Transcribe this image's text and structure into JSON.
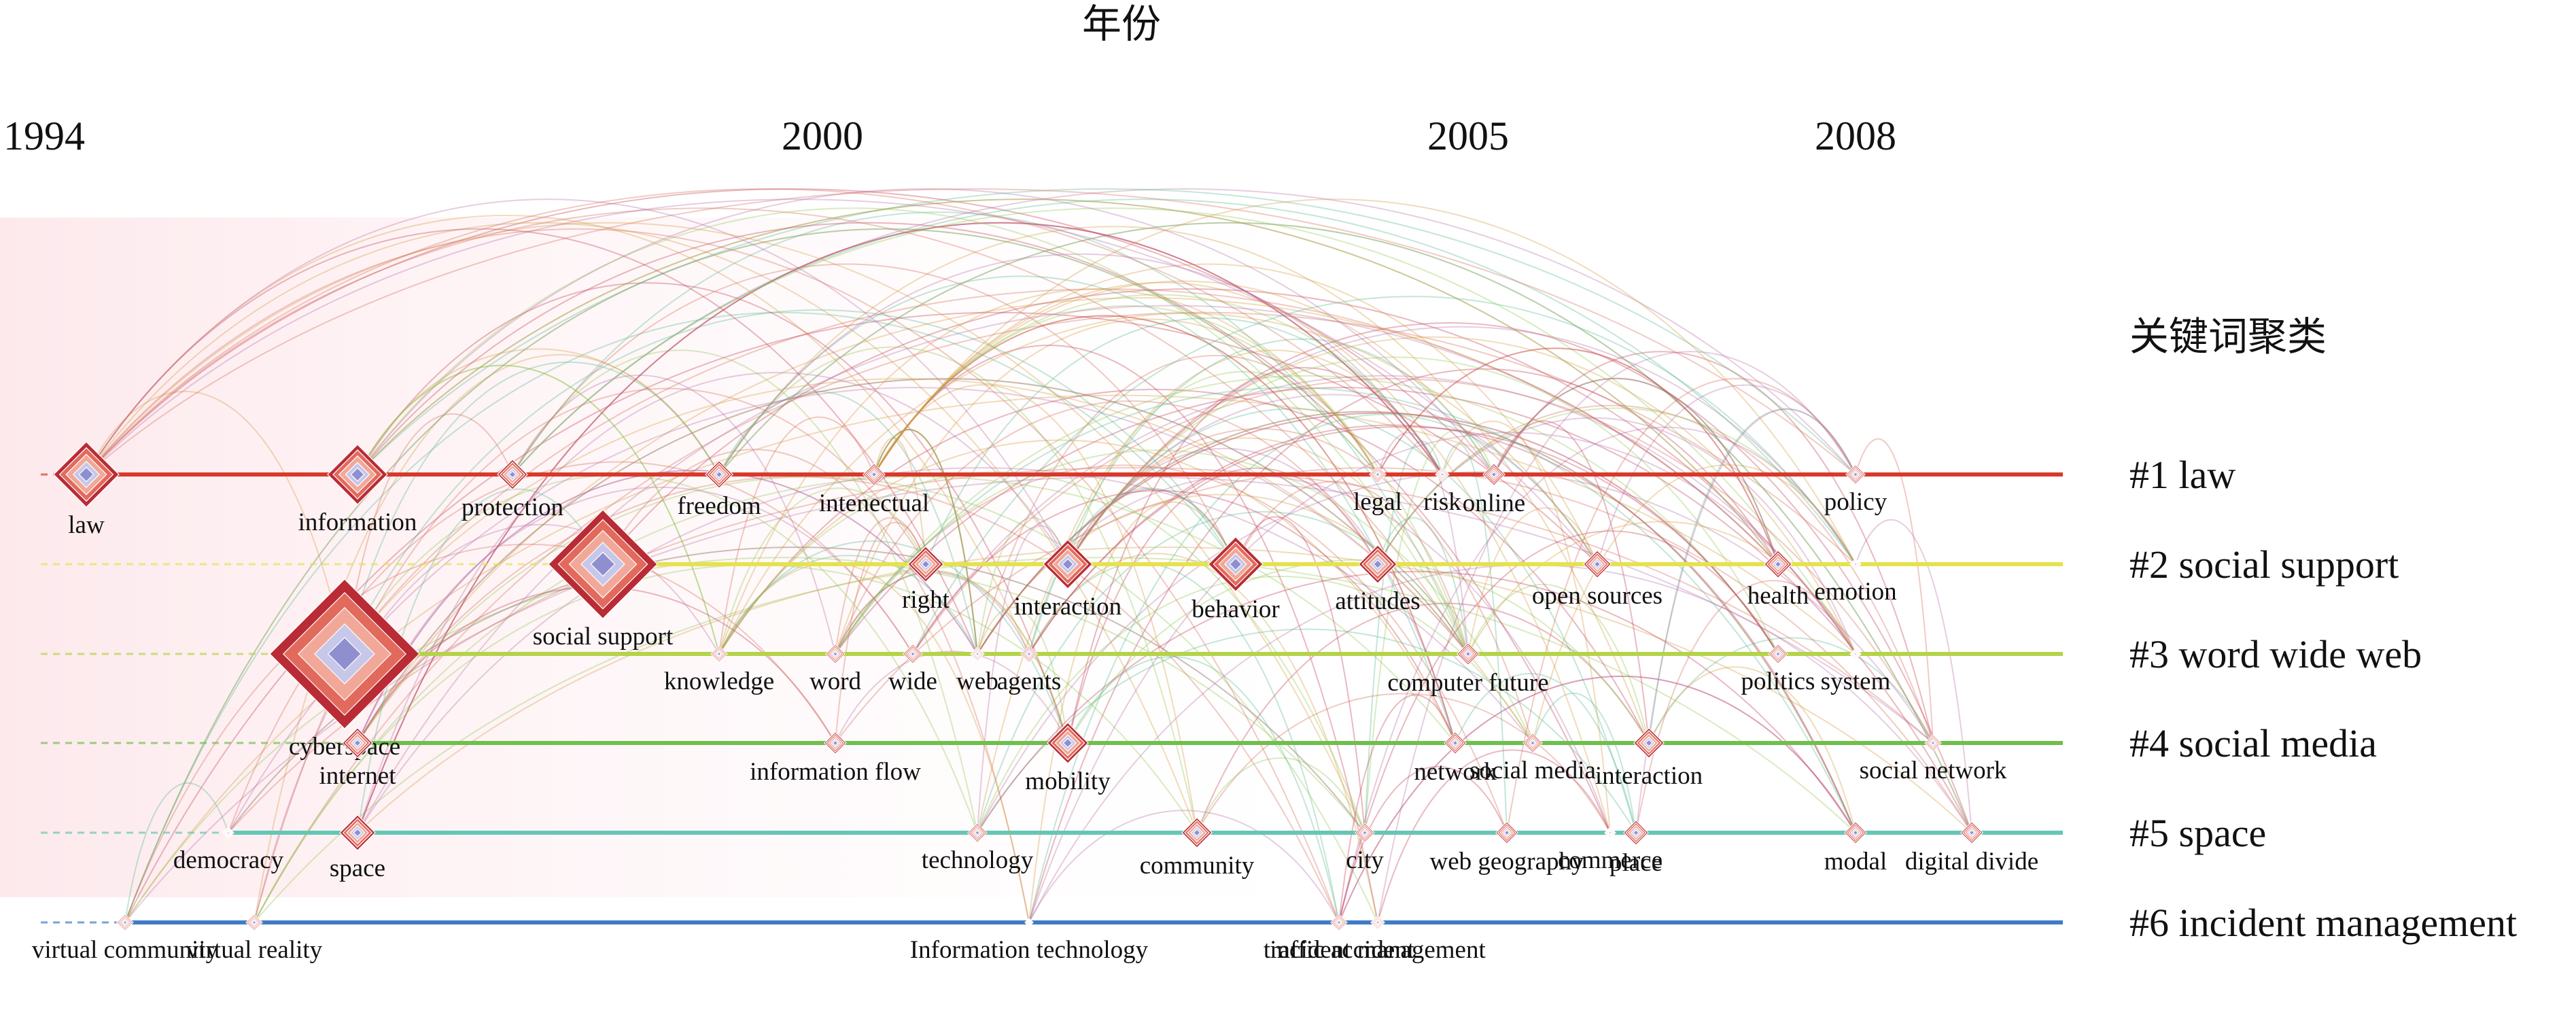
{
  "chart_data": {
    "type": "timeline",
    "title": "年份",
    "legend_title": "关键词聚类",
    "years": [
      "1994",
      "2000",
      "2005",
      "2008"
    ],
    "clusters": [
      {
        "id": 1,
        "label": "#1 law",
        "color": "#d9392b"
      },
      {
        "id": 2,
        "label": "#2 social support",
        "color": "#e6e24f"
      },
      {
        "id": 3,
        "label": "#3 word wide web",
        "color": "#b5d34a"
      },
      {
        "id": 4,
        "label": "#4 social media",
        "color": "#6fbf4e"
      },
      {
        "id": 5,
        "label": "#5 space",
        "color": "#66c6b4"
      },
      {
        "id": 6,
        "label": "#6 incident management",
        "color": "#3f7bc6"
      }
    ],
    "keywords": [
      {
        "label": "law",
        "cluster": 1,
        "year": 1994.3,
        "size": 48
      },
      {
        "label": "information",
        "cluster": 1,
        "year": 1996.4,
        "size": 44
      },
      {
        "label": "protection",
        "cluster": 1,
        "year": 1997.6,
        "size": 22
      },
      {
        "label": "freedom",
        "cluster": 1,
        "year": 1999.2,
        "size": 20
      },
      {
        "label": "intenectual",
        "cluster": 1,
        "year": 2000.4,
        "size": 16
      },
      {
        "label": "legal",
        "cluster": 1,
        "year": 2004.3,
        "size": 12
      },
      {
        "label": "risk",
        "cluster": 1,
        "year": 2004.8,
        "size": 10
      },
      {
        "label": "online",
        "cluster": 1,
        "year": 2005.2,
        "size": 16
      },
      {
        "label": "policy",
        "cluster": 1,
        "year": 2008.0,
        "size": 14
      },
      {
        "label": "social support",
        "cluster": 2,
        "year": 1998.3,
        "size": 80
      },
      {
        "label": "right",
        "cluster": 2,
        "year": 2000.8,
        "size": 26
      },
      {
        "label": "interaction",
        "cluster": 2,
        "year": 2001.9,
        "size": 36
      },
      {
        "label": "behavior",
        "cluster": 2,
        "year": 2003.2,
        "size": 40
      },
      {
        "label": "attitudes",
        "cluster": 2,
        "year": 2004.3,
        "size": 28
      },
      {
        "label": "open sources",
        "cluster": 2,
        "year": 2006.0,
        "size": 20
      },
      {
        "label": "health",
        "cluster": 2,
        "year": 2007.4,
        "size": 20
      },
      {
        "label": "emotion",
        "cluster": 2,
        "year": 2008.0,
        "size": 8
      },
      {
        "label": "cyberspace",
        "cluster": 3,
        "year": 1996.3,
        "size": 110
      },
      {
        "label": "knowledge",
        "cluster": 3,
        "year": 1999.2,
        "size": 12
      },
      {
        "label": "word",
        "cluster": 3,
        "year": 2000.1,
        "size": 14
      },
      {
        "label": "wide",
        "cluster": 3,
        "year": 2000.7,
        "size": 14
      },
      {
        "label": "web",
        "cluster": 3,
        "year": 2001.2,
        "size": 10
      },
      {
        "label": "agents",
        "cluster": 3,
        "year": 2001.6,
        "size": 12
      },
      {
        "label": "computer future",
        "cluster": 3,
        "year": 2005.0,
        "size": 16
      },
      {
        "label": "politics",
        "cluster": 3,
        "year": 2007.4,
        "size": 14
      },
      {
        "label": "system",
        "cluster": 3,
        "year": 2008.0,
        "size": 8
      },
      {
        "label": "internet",
        "cluster": 4,
        "year": 1996.4,
        "size": 22
      },
      {
        "label": "information flow",
        "cluster": 4,
        "year": 2000.1,
        "size": 16
      },
      {
        "label": "mobility",
        "cluster": 4,
        "year": 2001.9,
        "size": 30
      },
      {
        "label": "network",
        "cluster": 4,
        "year": 2004.9,
        "size": 16
      },
      {
        "label": "social media",
        "cluster": 4,
        "year": 2005.5,
        "size": 14
      },
      {
        "label": "interaction",
        "cluster": 4,
        "year": 2006.4,
        "size": 22
      },
      {
        "label": "social network",
        "cluster": 4,
        "year": 2008.6,
        "size": 12
      },
      {
        "label": "democracy",
        "cluster": 5,
        "year": 1995.4,
        "size": 8
      },
      {
        "label": "space",
        "cluster": 5,
        "year": 1996.4,
        "size": 26
      },
      {
        "label": "technology",
        "cluster": 5,
        "year": 2001.2,
        "size": 14
      },
      {
        "label": "community",
        "cluster": 5,
        "year": 2002.9,
        "size": 22
      },
      {
        "label": "city",
        "cluster": 5,
        "year": 2004.2,
        "size": 14
      },
      {
        "label": "web geography",
        "cluster": 5,
        "year": 2005.3,
        "size": 16
      },
      {
        "label": "place",
        "cluster": 5,
        "year": 2006.3,
        "size": 18
      },
      {
        "label": "commerce",
        "cluster": 5,
        "year": 2006.1,
        "size": 8
      },
      {
        "label": "modal",
        "cluster": 5,
        "year": 2008.0,
        "size": 16
      },
      {
        "label": "digital divide",
        "cluster": 5,
        "year": 2008.9,
        "size": 16
      },
      {
        "label": "virtual community",
        "cluster": 6,
        "year": 1994.6,
        "size": 12
      },
      {
        "label": "virtual reality",
        "cluster": 6,
        "year": 1995.6,
        "size": 12
      },
      {
        "label": "Information technology",
        "cluster": 6,
        "year": 2001.6,
        "size": 6
      },
      {
        "label": "traffic accident",
        "cluster": 6,
        "year": 2004.0,
        "size": 12
      },
      {
        "label": "incident management",
        "cluster": 6,
        "year": 2004.3,
        "size": 10
      }
    ]
  }
}
